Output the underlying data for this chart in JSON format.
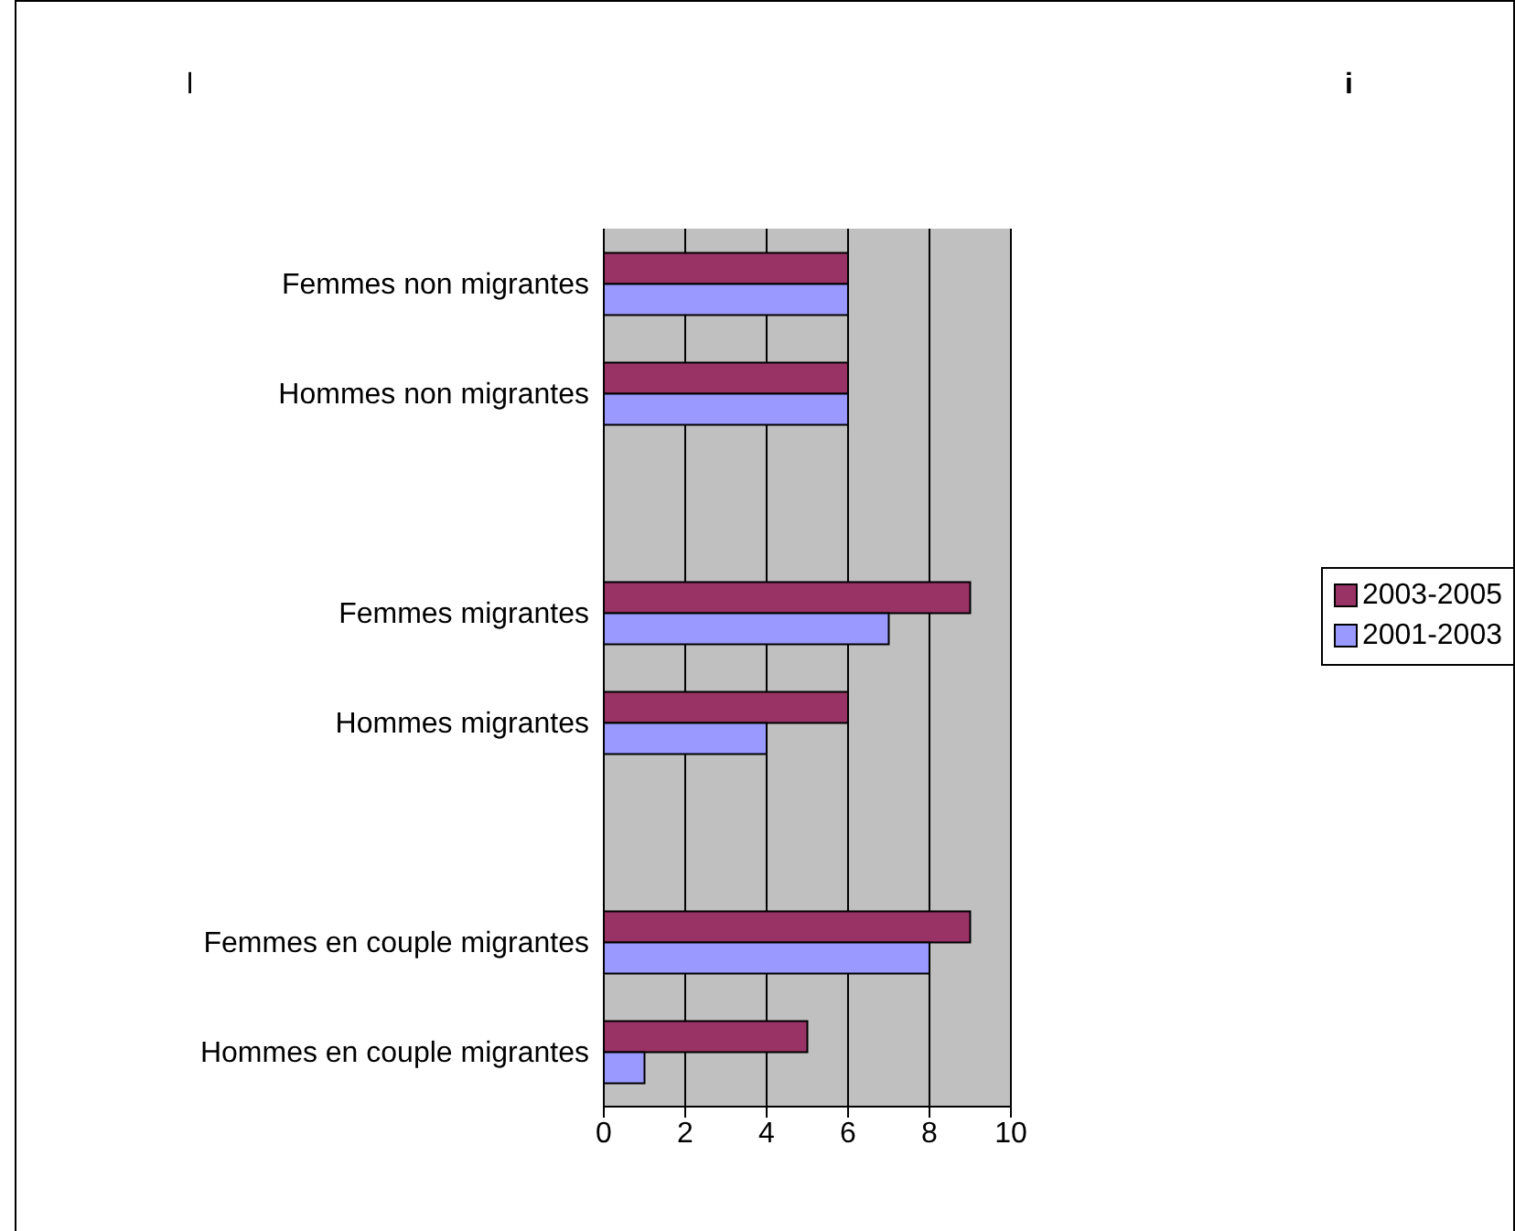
{
  "chart_data": {
    "type": "bar",
    "orientation": "horizontal",
    "categories": [
      "Femmes non migrantes",
      "Hommes non migrantes",
      null,
      "Femmes migrantes",
      "Hommes migrantes",
      null,
      "Femmes en couple migrantes",
      "Hommes en couple migrantes"
    ],
    "series": [
      {
        "name": "2003-2005",
        "color": "#993366",
        "values": [
          6,
          6,
          null,
          9,
          6,
          null,
          9,
          5
        ]
      },
      {
        "name": "2001-2003",
        "color": "#9999ff",
        "values": [
          6,
          6,
          null,
          7,
          4,
          null,
          8,
          1
        ]
      }
    ],
    "xlim": [
      0,
      10
    ],
    "xticks": [
      0,
      2,
      4,
      6,
      8,
      10
    ],
    "grid": "x",
    "legend": "right",
    "annotations": [
      "l",
      "i"
    ]
  }
}
